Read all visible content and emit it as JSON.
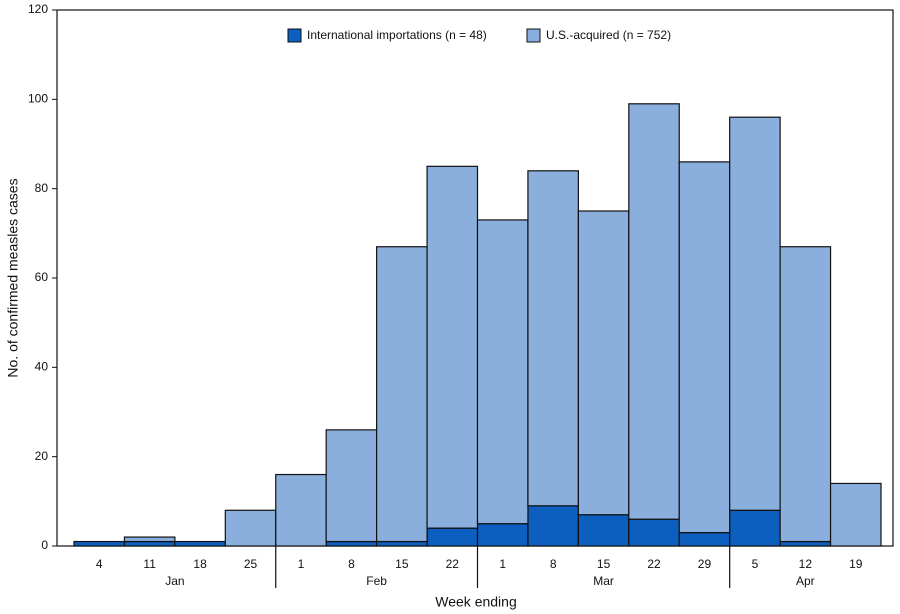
{
  "chart_data": {
    "type": "stacked_bar",
    "x_label": "Week ending",
    "y_label": "No. of confirmed measles cases",
    "groups": [
      {
        "name": "Jan",
        "categories": [
          "4",
          "11",
          "18",
          "25"
        ]
      },
      {
        "name": "Feb",
        "categories": [
          "1",
          "8",
          "15",
          "22"
        ]
      },
      {
        "name": "Mar",
        "categories": [
          "1",
          "8",
          "15",
          "22",
          "29"
        ]
      },
      {
        "name": "Apr",
        "categories": [
          "5",
          "12",
          "19"
        ]
      }
    ],
    "series": [
      {
        "name": "International importations (n = 48)",
        "color": "#0d5fbf",
        "values": [
          1,
          1,
          1,
          0,
          0,
          1,
          1,
          4,
          5,
          9,
          7,
          6,
          3,
          8,
          1,
          0
        ]
      },
      {
        "name": "U.S.-acquired (n = 752)",
        "color": "#8bafdc",
        "values": [
          0,
          1,
          0,
          8,
          16,
          25,
          66,
          81,
          68,
          75,
          68,
          93,
          83,
          88,
          66,
          14
        ]
      }
    ],
    "ylim": [
      0,
      120
    ],
    "yticks": [
      0,
      20,
      40,
      60,
      80,
      100,
      120
    ]
  }
}
